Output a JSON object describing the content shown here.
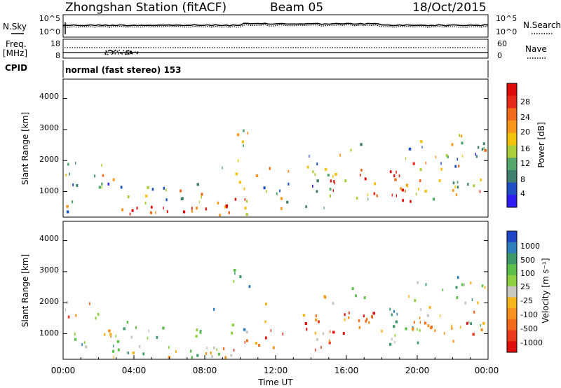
{
  "header": {
    "station_title": "Zhongshan Station (fitACF)",
    "beam_label": "Beam 05",
    "date_label": "18/Oct/2015"
  },
  "panels": {
    "nsky": {
      "left_label": "N.Sky",
      "right_label": "N.Search",
      "left_ticks": [
        "10^5",
        "10^0"
      ],
      "right_ticks": [
        "10^5",
        "10^0"
      ]
    },
    "freq": {
      "left_label_line1": "Freq.",
      "left_label_line2": "[MHz]",
      "right_label": "Nave",
      "left_ticks": [
        "18",
        "8"
      ],
      "right_ticks": [
        "60",
        "0"
      ]
    },
    "cpid": {
      "label": "CPID",
      "mode_text": "normal (fast stereo) 153"
    }
  },
  "chart_data": [
    {
      "type": "heatmap",
      "name": "power",
      "ylabel": "Slant Range [km]",
      "yticks": [
        1000,
        2000,
        3000,
        4000
      ],
      "ylim": [
        200,
        4600
      ],
      "xlim": [
        0,
        24
      ],
      "colorbar_label": "Power [dB]",
      "colorbar_ticks": [
        "4",
        "8",
        "12",
        "16",
        "20",
        "24",
        "28"
      ],
      "colorbar_colors": [
        "#2e1cf5",
        "#1f4fc4",
        "#3f7f6e",
        "#55a86b",
        "#a9cf3a",
        "#f2c20c",
        "#f8961b",
        "#f26a1c",
        "#e82a1b",
        "#e10a0a"
      ]
    },
    {
      "type": "heatmap",
      "name": "velocity",
      "ylabel": "Slant Range [km]",
      "yticks": [
        1000,
        2000,
        3000,
        4000
      ],
      "ylim": [
        200,
        4600
      ],
      "xlim": [
        0,
        24
      ],
      "xlabel": "Time UT",
      "xticks": [
        "00:00",
        "04:00",
        "08:00",
        "12:00",
        "16:00",
        "20:00",
        "00:00"
      ],
      "colorbar_label": "Velocity [m s⁻¹]",
      "colorbar_ticks": [
        "1000",
        "500",
        "100",
        "25",
        "-25",
        "-100",
        "-500",
        "-1000"
      ],
      "colorbar_colors": [
        "#1f47c8",
        "#2f7fbd",
        "#3c9a6a",
        "#5cbf4a",
        "#8ed040",
        "#c8c8c0",
        "#f7b51c",
        "#f6921d",
        "#f46a1b",
        "#ec3a1c",
        "#e00d0d"
      ]
    }
  ]
}
